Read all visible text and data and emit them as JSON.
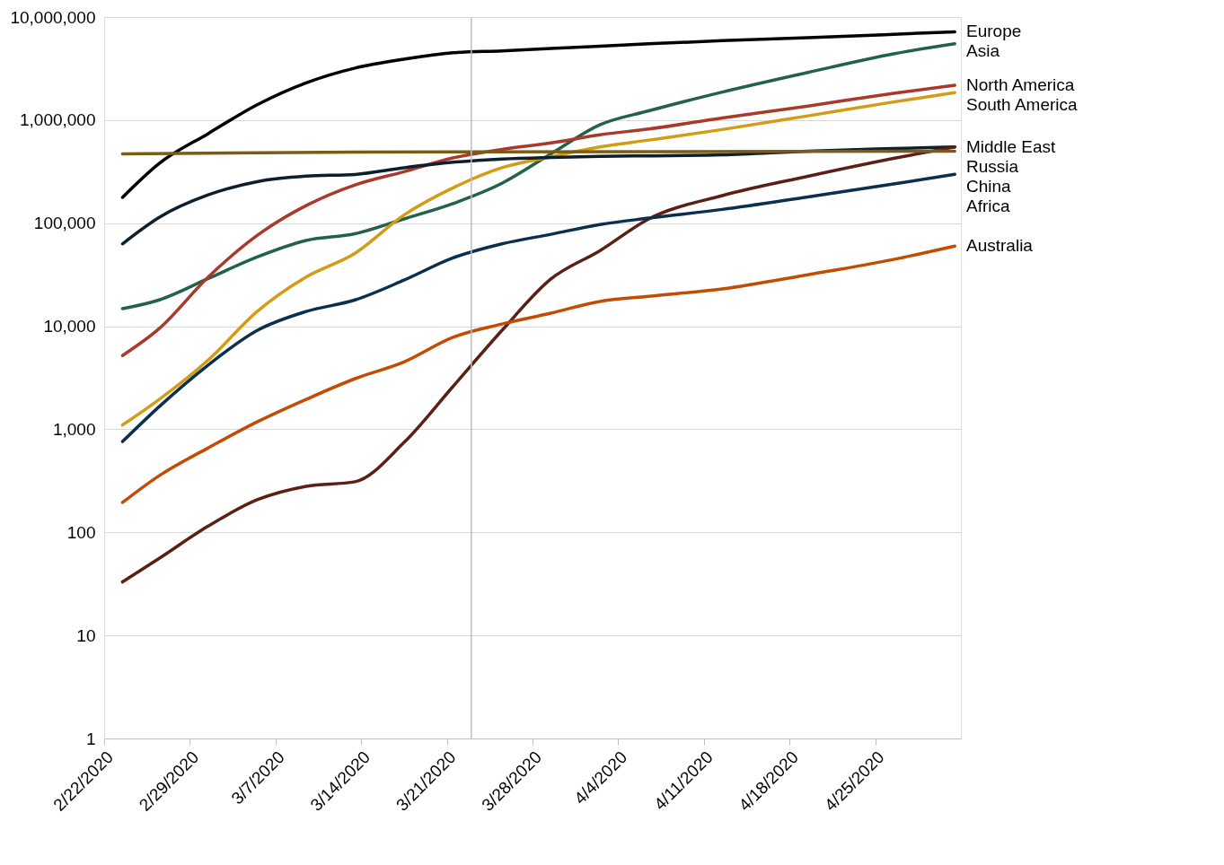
{
  "chart_data": {
    "type": "line",
    "log": true,
    "grid": "y",
    "x": [
      "2020-02-23T12:00",
      "2020-02-26T12:00",
      "2020-03-01T12:00",
      "2020-03-05T12:00",
      "2020-03-09T12:00",
      "2020-03-13T12:00",
      "2020-03-17T12:00",
      "2020-03-21T12:00",
      "2020-03-25T12:00",
      "2020-03-29T12:00",
      "2020-04-02T12:00",
      "2020-04-06T12:00",
      "2020-04-12T12:00",
      "2020-04-19T12:00",
      "2020-04-26T12:00",
      "2020-05-01T12:00"
    ],
    "xlim": [
      "2020-02-22",
      "2020-05-02"
    ],
    "xticks": [
      {
        "value": "2020-02-22",
        "label": "2/22/2020"
      },
      {
        "value": "2020-02-29",
        "label": "2/29/2020"
      },
      {
        "value": "2020-03-07",
        "label": "3/7/2020"
      },
      {
        "value": "2020-03-14",
        "label": "3/14/2020"
      },
      {
        "value": "2020-03-21",
        "label": "3/21/2020"
      },
      {
        "value": "2020-03-28",
        "label": "3/28/2020"
      },
      {
        "value": "2020-04-04",
        "label": "4/4/2020"
      },
      {
        "value": "2020-04-11",
        "label": "4/11/2020"
      },
      {
        "value": "2020-04-18",
        "label": "4/18/2020"
      },
      {
        "value": "2020-04-25",
        "label": "4/25/2020"
      }
    ],
    "ylim": [
      1,
      10000000
    ],
    "yticks": [
      1,
      10,
      100,
      {
        "value": 1000,
        "label": "1,000"
      },
      {
        "value": 10000,
        "label": "10,000"
      },
      {
        "value": 100000,
        "label": "100,000"
      },
      {
        "value": 1000000,
        "label": "1,000,000"
      },
      {
        "value": 10000000,
        "label": "10,000,000"
      }
    ],
    "ref_lines": [
      {
        "axis": "x",
        "value": "2020-03-23",
        "color": "#bfbfbf"
      }
    ],
    "series": [
      {
        "name": "Europe",
        "color": "#000000",
        "values": [
          178000,
          380000,
          740000,
          1410000,
          2300000,
          3200000,
          3900000,
          4500000,
          4700000,
          4950000,
          5200000,
          5500000,
          5900000,
          6300000,
          6800000,
          7200000
        ]
      },
      {
        "name": "Asia",
        "color": "#22624a",
        "values": [
          14800,
          18000,
          29000,
          47000,
          68000,
          79000,
          110000,
          155000,
          244000,
          470000,
          900000,
          1230000,
          1870000,
          2900000,
          4400000,
          5500000
        ]
      },
      {
        "name": "North America",
        "color": "#a8392b",
        "values": [
          5200,
          9500,
          30000,
          76000,
          148000,
          235000,
          316000,
          430000,
          520000,
          600000,
          720000,
          820000,
          1050000,
          1370000,
          1820000,
          2180000
        ]
      },
      {
        "name": "South America",
        "color": "#d39c17",
        "values": [
          1100,
          1950,
          4700,
          13900,
          30000,
          51000,
          120000,
          220000,
          345000,
          440000,
          550000,
          640000,
          810000,
          1100000,
          1500000,
          1850000
        ]
      },
      {
        "name": "Middle East",
        "color": "#0d1e2c",
        "values": [
          63000,
          114000,
          188000,
          253000,
          286000,
          297000,
          345000,
          390000,
          420000,
          435000,
          445000,
          450000,
          460000,
          500000,
          530000,
          550000
        ]
      },
      {
        "name": "Russia",
        "color": "#5c1f15",
        "values": [
          33,
          56,
          115,
          207,
          280,
          310,
          745,
          2600,
          9100,
          28700,
          54000,
          110000,
          185000,
          285000,
          425000,
          550000
        ]
      },
      {
        "name": "Africa",
        "color": "#0a2f4f",
        "values": [
          760,
          1660,
          4200,
          9100,
          13900,
          18000,
          28000,
          46000,
          63000,
          78000,
          97000,
          112000,
          136000,
          180000,
          240000,
          298000
        ]
      },
      {
        "name": "Australia",
        "color": "#c24c02",
        "values": [
          195,
          355,
          660,
          1180,
          1950,
          3100,
          4500,
          7800,
          10500,
          13400,
          17400,
          19500,
          23000,
          31600,
          44500,
          60000
        ]
      },
      {
        "name": "China",
        "color": "#7a5c12",
        "x": [
          "2020-02-23T12:00",
          "2020-03-13T12:00",
          "2020-05-01T12:00"
        ],
        "values": [
          470000,
          490000,
          500000
        ]
      }
    ]
  }
}
